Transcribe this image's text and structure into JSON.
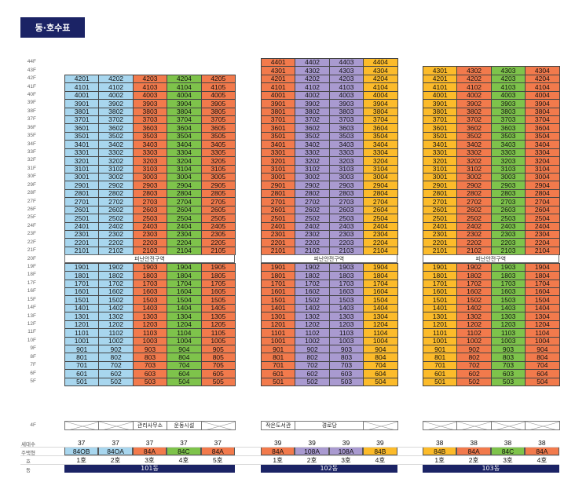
{
  "title": "동·호수표",
  "colors": {
    "blue": "#a8d6ee",
    "orange": "#f27a4c",
    "green": "#7ec34b",
    "purple": "#a99ad0",
    "yellow": "#fcbb2a",
    "navy": "#1b2365"
  },
  "refuge_label": "피난안전구역",
  "row_labels": {
    "households": "세대수",
    "type": "주택형",
    "line": "호",
    "building": "동"
  },
  "buildings": [
    {
      "name": "101동",
      "top_floor": 42,
      "colors": [
        "blue",
        "blue",
        "orange",
        "green",
        "orange"
      ],
      "households": [
        "37",
        "37",
        "37",
        "37",
        "37"
      ],
      "types": [
        "84OB",
        "84OA",
        "84A",
        "84C",
        "84A"
      ],
      "type_colors": [
        "blue",
        "blue",
        "orange",
        "green",
        "orange"
      ],
      "lines": [
        "1호",
        "2호",
        "3호",
        "4호",
        "5호"
      ],
      "facilities": [
        {
          "text": "",
          "span": 1
        },
        {
          "text": "",
          "span": 1
        },
        {
          "text": "관리사무소",
          "span": 1
        },
        {
          "text": "운동시설",
          "span": 1
        },
        {
          "text": "",
          "span": 1
        }
      ]
    },
    {
      "name": "102동",
      "top_floor": 44,
      "colors": [
        "orange",
        "purple",
        "purple",
        "yellow"
      ],
      "households": [
        "39",
        "39",
        "39",
        "39"
      ],
      "types": [
        "84A",
        "108A",
        "108A",
        "84B"
      ],
      "type_colors": [
        "orange",
        "purple",
        "purple",
        "yellow"
      ],
      "lines": [
        "1호",
        "2호",
        "3호",
        "4호"
      ],
      "facilities": [
        {
          "text": "작은도서관",
          "span": 1
        },
        {
          "text": "경로당",
          "span": 2
        },
        {
          "text": "",
          "span": 1
        }
      ]
    },
    {
      "name": "103동",
      "top_floor": 43,
      "colors": [
        "yellow",
        "orange",
        "green",
        "orange"
      ],
      "households": [
        "38",
        "38",
        "38",
        "38"
      ],
      "types": [
        "84B",
        "84A",
        "84C",
        "84A"
      ],
      "type_colors": [
        "yellow",
        "orange",
        "green",
        "orange"
      ],
      "lines": [
        "1호",
        "2호",
        "3호",
        "4호"
      ],
      "facilities": [
        {
          "text": "",
          "span": 1
        },
        {
          "text": "",
          "span": 1
        },
        {
          "text": "",
          "span": 1
        },
        {
          "text": "",
          "span": 1
        }
      ]
    }
  ]
}
